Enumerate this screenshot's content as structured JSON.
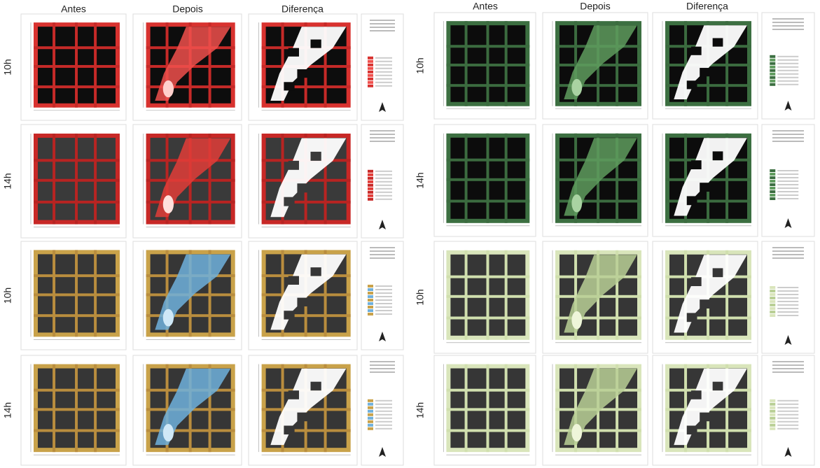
{
  "left": {
    "headers": [
      "Antes",
      "Depois",
      "Diferença"
    ],
    "rows": [
      "10h",
      "14h",
      "10h",
      "14h"
    ]
  },
  "right": {
    "headers": [
      "Antes",
      "Depois",
      "Diferença"
    ],
    "rows": [
      "10h",
      "14h",
      "10h",
      "14h"
    ]
  }
}
